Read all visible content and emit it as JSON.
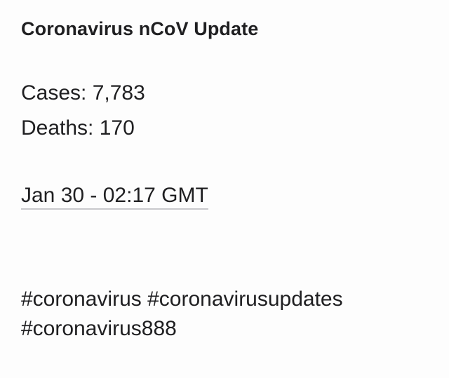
{
  "post": {
    "title": "Coronavirus nCoV Update",
    "cases_label": "Cases:",
    "cases_value": "7,783",
    "deaths_label": "Deaths:",
    "deaths_value": "170",
    "timestamp": "Jan 30 - 02:17 GMT",
    "hashtags": [
      "#coronavirus",
      "#coronavirusupdates",
      "#coronavirus888"
    ]
  },
  "colors": {
    "background": "#fdfdfd",
    "text": "#1f1f21",
    "underline": "#c8c8cc"
  }
}
